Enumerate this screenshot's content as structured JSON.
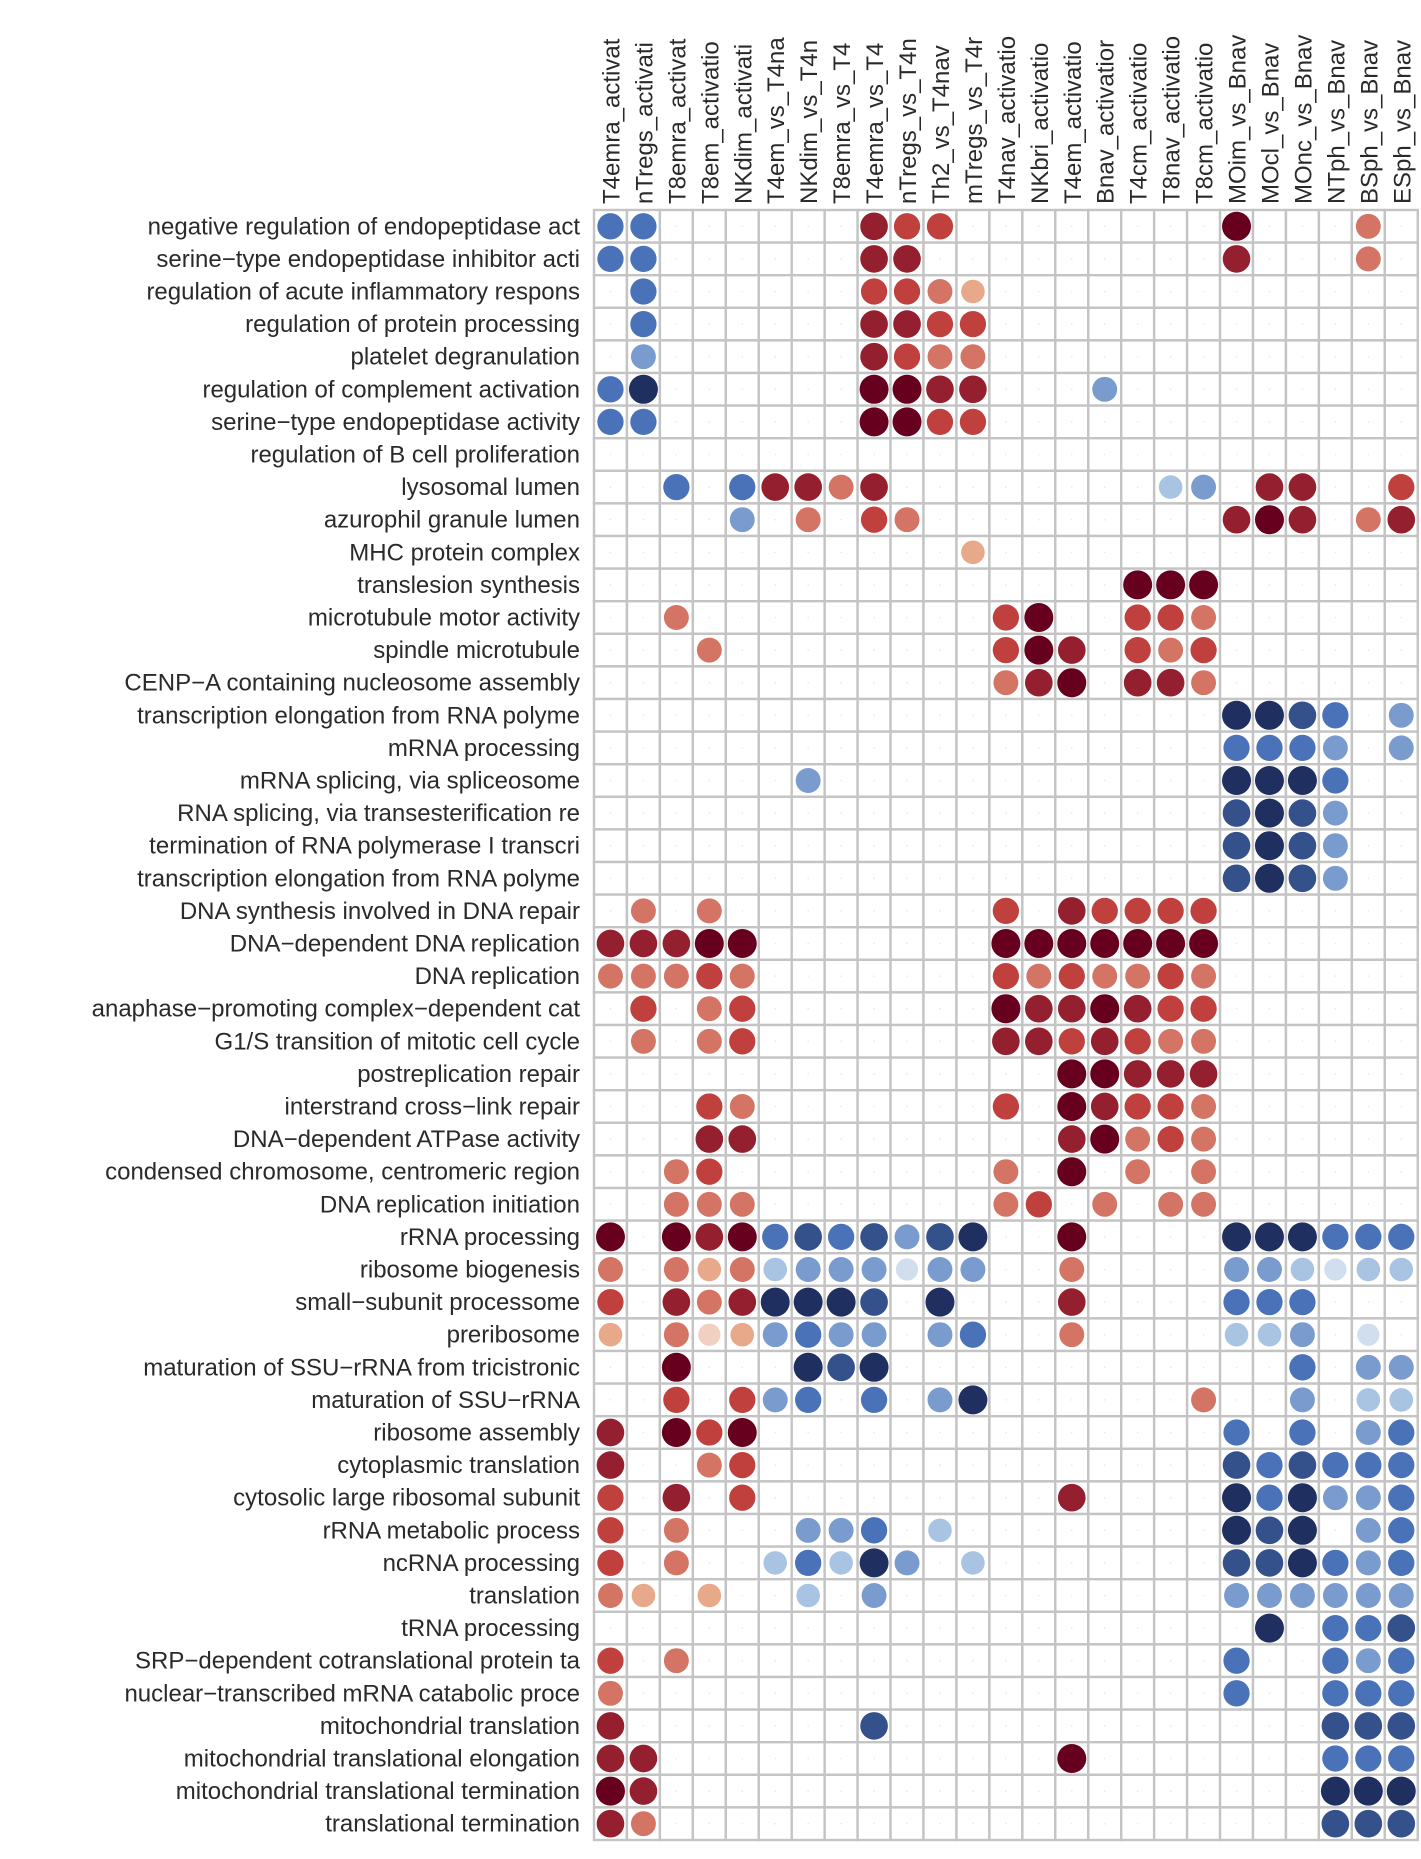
{
  "chart_data": {
    "type": "heatmap",
    "encoding": "dot color = signed enrichment (positive red, negative blue), dot size = magnitude; scale -3..3",
    "columns": [
      "T4emra_activat",
      "nTregs_activati",
      "T8emra_activat",
      "T8em_activatio",
      "NKdim_activati",
      "T4em_vs_T4na",
      "NKdim_vs_T4n",
      "T8emra_vs_T4",
      "T4emra_vs_T4",
      "nTregs_vs_T4n",
      "Th2_vs_T4nav",
      "mTregs_vs_T4r",
      "T4nav_activatio",
      "NKbri_activatio",
      "T4em_activatio",
      "Bnav_activatior",
      "T4cm_activatio",
      "T8nav_activatio",
      "T8cm_activatio",
      "MOim_vs_Bnav",
      "MOcl_vs_Bnav",
      "MOnc_vs_Bnav",
      "NTph_vs_Bnav",
      "BSph_vs_Bnav",
      "ESph_vs_Bnav"
    ],
    "rows": [
      "negative regulation of endopeptidase act",
      "serine−type endopeptidase inhibitor acti",
      "regulation of acute inflammatory respons",
      "regulation of protein processing",
      "platelet degranulation",
      "regulation of complement activation",
      "serine−type endopeptidase activity",
      "regulation of B cell proliferation",
      "lysosomal lumen",
      "azurophil granule lumen",
      "MHC protein complex",
      "translesion synthesis",
      "microtubule motor activity",
      "spindle microtubule",
      "CENP−A containing nucleosome assembly",
      "transcription elongation from RNA polyme",
      "mRNA processing",
      "mRNA splicing, via spliceosome",
      "RNA splicing, via transesterification re",
      "termination of RNA polymerase I transcri",
      "transcription elongation from RNA polyme",
      "DNA synthesis involved in DNA repair",
      "DNA−dependent DNA replication",
      "DNA replication",
      "anaphase−promoting complex−dependent cat",
      "G1/S transition of mitotic cell cycle",
      "postreplication repair",
      "interstrand cross−link repair",
      "DNA−dependent ATPase activity",
      "condensed chromosome, centromeric region",
      "DNA replication initiation",
      "rRNA processing",
      "ribosome biogenesis",
      "small−subunit processome",
      "preribosome",
      "maturation of SSU−rRNA from tricistronic",
      "maturation of SSU−rRNA",
      "ribosome assembly",
      "cytoplasmic translation",
      "cytosolic large ribosomal subunit",
      "rRNA metabolic process",
      "ncRNA processing",
      "translation",
      "tRNA processing",
      "SRP−dependent cotranslational protein ta",
      "nuclear−transcribed mRNA catabolic proce",
      "mitochondrial translation",
      "mitochondrial translational elongation",
      "mitochondrial translational termination",
      "translational termination"
    ],
    "values": [
      [
        -2,
        -2,
        0,
        0,
        0,
        0,
        0,
        0,
        2.5,
        2,
        2,
        0,
        0,
        0,
        0,
        0,
        0,
        0,
        0,
        3,
        0,
        0,
        0,
        1.5,
        0
      ],
      [
        -2,
        -2,
        0,
        0,
        0,
        0,
        0,
        0,
        2.5,
        2.5,
        0,
        0,
        0,
        0,
        0,
        0,
        0,
        0,
        0,
        2.5,
        0,
        0,
        0,
        1.5,
        0
      ],
      [
        0,
        -2,
        0,
        0,
        0,
        0,
        0,
        0,
        2,
        2,
        1.5,
        1,
        0,
        0,
        0,
        0,
        0,
        0,
        0,
        0,
        0,
        0,
        0,
        0,
        0
      ],
      [
        0,
        -2,
        0,
        0,
        0,
        0,
        0,
        0,
        2.5,
        2.5,
        2,
        2,
        0,
        0,
        0,
        0,
        0,
        0,
        0,
        0,
        0,
        0,
        0,
        0,
        0
      ],
      [
        0,
        -1.5,
        0,
        0,
        0,
        0,
        0,
        0,
        2.5,
        2,
        1.5,
        1.5,
        0,
        0,
        0,
        0,
        0,
        0,
        0,
        0,
        0,
        0,
        0,
        0,
        0
      ],
      [
        -2,
        -3,
        0,
        0,
        0,
        0,
        0,
        0,
        3,
        3,
        2.5,
        2.5,
        0,
        0,
        0,
        -1.5,
        0,
        0,
        0,
        0,
        0,
        0,
        0,
        0,
        0
      ],
      [
        -2,
        -2,
        0,
        0,
        0,
        0,
        0,
        0,
        3,
        3,
        2,
        2,
        0,
        0,
        0,
        0,
        0,
        0,
        0,
        0,
        0,
        0,
        0,
        0,
        0
      ],
      [
        0,
        0,
        0,
        0,
        0,
        0,
        0,
        0,
        0,
        0,
        0,
        0,
        0,
        0,
        0,
        0,
        0,
        0,
        0,
        0,
        0,
        0,
        0,
        0,
        0
      ],
      [
        0,
        0,
        -2,
        0,
        -2,
        2.5,
        2.5,
        1.5,
        2.5,
        0,
        0,
        0,
        0,
        0,
        0,
        0,
        0,
        -1,
        -1.5,
        0,
        2.5,
        2.5,
        0,
        0,
        2
      ],
      [
        0,
        0,
        0,
        0,
        -1.5,
        0,
        1.5,
        0,
        2,
        1.5,
        0,
        0,
        0,
        0,
        0,
        0,
        0,
        0,
        0,
        2.5,
        3,
        2.5,
        0,
        1.5,
        2.5
      ],
      [
        0,
        0,
        0,
        0,
        0,
        0,
        0,
        0,
        0,
        0,
        0,
        1,
        0,
        0,
        0,
        0,
        0,
        0,
        0,
        0,
        0,
        0,
        0,
        0,
        0
      ],
      [
        0,
        0,
        0,
        0,
        0,
        0,
        0,
        0,
        0,
        0,
        0,
        0,
        0,
        0,
        0,
        0,
        3,
        3,
        3,
        0,
        0,
        0,
        0,
        0,
        0
      ],
      [
        0,
        0,
        1.5,
        0,
        0,
        0,
        0,
        0,
        0,
        0,
        0,
        0,
        2,
        3,
        0,
        0,
        2,
        2,
        1.5,
        0,
        0,
        0,
        0,
        0,
        0
      ],
      [
        0,
        0,
        0,
        1.5,
        0,
        0,
        0,
        0,
        0,
        0,
        0,
        0,
        2,
        3,
        2.5,
        0,
        2,
        1.5,
        2,
        0,
        0,
        0,
        0,
        0,
        0
      ],
      [
        0,
        0,
        0,
        0,
        0,
        0,
        0,
        0,
        0,
        0,
        0,
        0,
        1.5,
        2.5,
        3,
        0,
        2.5,
        2.5,
        1.5,
        0,
        0,
        0,
        0,
        0,
        0
      ],
      [
        0,
        0,
        0,
        0,
        0,
        0,
        0,
        0,
        0,
        0,
        0,
        0,
        0,
        0,
        0,
        0,
        0,
        0,
        0,
        -3,
        -3,
        -2.5,
        -2,
        0,
        -1.5
      ],
      [
        0,
        0,
        0,
        0,
        0,
        0,
        0,
        0,
        0,
        0,
        0,
        0,
        0,
        0,
        0,
        0,
        0,
        0,
        0,
        -2,
        -2,
        -2,
        -1.5,
        0,
        -1.5
      ],
      [
        0,
        0,
        0,
        0,
        0,
        0,
        -1.5,
        0,
        0,
        0,
        0,
        0,
        0,
        0,
        0,
        0,
        0,
        0,
        0,
        -3,
        -3,
        -3,
        -2,
        0,
        0
      ],
      [
        0,
        0,
        0,
        0,
        0,
        0,
        0,
        0,
        0,
        0,
        0,
        0,
        0,
        0,
        0,
        0,
        0,
        0,
        0,
        -2.5,
        -3,
        -2.5,
        -1.5,
        0,
        0
      ],
      [
        0,
        0,
        0,
        0,
        0,
        0,
        0,
        0,
        0,
        0,
        0,
        0,
        0,
        0,
        0,
        0,
        0,
        0,
        0,
        -2.5,
        -3,
        -2.5,
        -1.5,
        0,
        0
      ],
      [
        0,
        0,
        0,
        0,
        0,
        0,
        0,
        0,
        0,
        0,
        0,
        0,
        0,
        0,
        0,
        0,
        0,
        0,
        0,
        -2.5,
        -3,
        -2.5,
        -1.5,
        0,
        0
      ],
      [
        0,
        1.5,
        0,
        1.5,
        0,
        0,
        0,
        0,
        0,
        0,
        0,
        0,
        2,
        0,
        2.5,
        2,
        2,
        2,
        2,
        0,
        0,
        0,
        0,
        0,
        0
      ],
      [
        2.5,
        2.5,
        2.5,
        3,
        3,
        0,
        0,
        0,
        0,
        0,
        0,
        0,
        3,
        3,
        3,
        3,
        3,
        3,
        3,
        0,
        0,
        0,
        0,
        0,
        0
      ],
      [
        1.5,
        1.5,
        1.5,
        2,
        1.5,
        0,
        0,
        0,
        0,
        0,
        0,
        0,
        2,
        1.5,
        2,
        1.5,
        1.5,
        2,
        1.5,
        0,
        0,
        0,
        0,
        0,
        0
      ],
      [
        0,
        2,
        0,
        1.5,
        2,
        0,
        0,
        0,
        0,
        0,
        0,
        0,
        3,
        2.5,
        2.5,
        3,
        2.5,
        2,
        2,
        0,
        0,
        0,
        0,
        0,
        0
      ],
      [
        0,
        1.5,
        0,
        1.5,
        2,
        0,
        0,
        0,
        0,
        0,
        0,
        0,
        2.5,
        2.5,
        2,
        2.5,
        2,
        1.5,
        1.5,
        0,
        0,
        0,
        0,
        0,
        0
      ],
      [
        0,
        0,
        0,
        0,
        0,
        0,
        0,
        0,
        0,
        0,
        0,
        0,
        0,
        0,
        3,
        3,
        2.5,
        2.5,
        2.5,
        0,
        0,
        0,
        0,
        0,
        0
      ],
      [
        0,
        0,
        0,
        2,
        1.5,
        0,
        0,
        0,
        0,
        0,
        0,
        0,
        2,
        0,
        3,
        2.5,
        2,
        2,
        1.5,
        0,
        0,
        0,
        0,
        0,
        0
      ],
      [
        0,
        0,
        0,
        2.5,
        2.5,
        0,
        0,
        0,
        0,
        0,
        0,
        0,
        0,
        0,
        2.5,
        3,
        1.5,
        2,
        1.5,
        0,
        0,
        0,
        0,
        0,
        0
      ],
      [
        0,
        0,
        1.5,
        2,
        0,
        0,
        0,
        0,
        0,
        0,
        0,
        0,
        1.5,
        0,
        3,
        0,
        1.5,
        0,
        1.5,
        0,
        0,
        0,
        0,
        0,
        0
      ],
      [
        0,
        0,
        1.5,
        1.5,
        1.5,
        0,
        0,
        0,
        0,
        0,
        0,
        0,
        1.5,
        2,
        0,
        1.5,
        0,
        1.5,
        1.5,
        0,
        0,
        0,
        0,
        0,
        0
      ],
      [
        3,
        0,
        3,
        2.5,
        3,
        -2,
        -2.5,
        -2,
        -2.5,
        -1.5,
        -2.5,
        -3,
        0,
        0,
        3,
        0,
        0,
        0,
        0,
        -3,
        -3,
        -3,
        -2,
        -2,
        -2
      ],
      [
        1.5,
        0,
        1.5,
        1,
        1.5,
        -1,
        -1.5,
        -1.5,
        -1.5,
        -0.5,
        -1.5,
        -1.5,
        0,
        0,
        1.5,
        0,
        0,
        0,
        0,
        -1.5,
        -1.5,
        -1,
        -0.5,
        -1,
        -1
      ],
      [
        2,
        0,
        2.5,
        1.5,
        2.5,
        -3,
        -3,
        -3,
        -2.5,
        0,
        -3,
        0,
        0,
        0,
        2.5,
        0,
        0,
        0,
        0,
        -2,
        -2,
        -2,
        0,
        0,
        0
      ],
      [
        1,
        0,
        1.5,
        0.5,
        1,
        -1.5,
        -2,
        -1.5,
        -1.5,
        0,
        -1.5,
        -2,
        0,
        0,
        1.5,
        0,
        0,
        0,
        0,
        -1,
        -1,
        -1.5,
        0,
        -0.5,
        0
      ],
      [
        0,
        0,
        3,
        0,
        0,
        0,
        -3,
        -2.5,
        -3,
        0,
        0,
        0,
        0,
        0,
        0,
        0,
        0,
        0,
        0,
        0,
        0,
        -2,
        0,
        -1.5,
        -1.5
      ],
      [
        0,
        0,
        2,
        0,
        2,
        -1.5,
        -2,
        0,
        -2,
        0,
        -1.5,
        -3,
        0,
        0,
        0,
        0,
        0,
        0,
        1.5,
        0,
        0,
        -1.5,
        0,
        -1,
        -1
      ],
      [
        2.5,
        0,
        3,
        2,
        3,
        0,
        0,
        0,
        0,
        0,
        0,
        0,
        0,
        0,
        0,
        0,
        0,
        0,
        0,
        -2,
        0,
        -2,
        0,
        -1.5,
        -2
      ],
      [
        2.5,
        0,
        0,
        1.5,
        2,
        0,
        0,
        0,
        0,
        0,
        0,
        0,
        0,
        0,
        0,
        0,
        0,
        0,
        0,
        -2.5,
        -2,
        -2.5,
        -2,
        -2,
        -2
      ],
      [
        2,
        0,
        2.5,
        0,
        2,
        0,
        0,
        0,
        0,
        0,
        0,
        0,
        0,
        0,
        2.5,
        0,
        0,
        0,
        0,
        -3,
        -2,
        -3,
        -1.5,
        -1.5,
        -2
      ],
      [
        2,
        0,
        1.5,
        0,
        0,
        0,
        -1.5,
        -1.5,
        -2,
        0,
        -1,
        0,
        0,
        0,
        0,
        0,
        0,
        0,
        0,
        -3,
        -2.5,
        -3,
        0,
        -1.5,
        -2
      ],
      [
        2,
        0,
        1.5,
        0,
        0,
        -1,
        -2,
        -1,
        -3,
        -1.5,
        0,
        -1,
        0,
        0,
        0,
        0,
        0,
        0,
        0,
        -2.5,
        -2.5,
        -3,
        -2,
        -1.5,
        -2
      ],
      [
        1.5,
        1,
        0,
        1,
        0,
        0,
        -1,
        0,
        -1.5,
        0,
        0,
        0,
        0,
        0,
        0,
        0,
        0,
        0,
        0,
        -1.5,
        -1.5,
        -1.5,
        -1.5,
        -1.5,
        -1.5
      ],
      [
        0,
        0,
        0,
        0,
        0,
        0,
        0,
        0,
        0,
        0,
        0,
        0,
        0,
        0,
        0,
        0,
        0,
        0,
        0,
        0,
        -3,
        0,
        -2,
        -2,
        -2.5
      ],
      [
        2,
        0,
        1.5,
        0,
        0,
        0,
        0,
        0,
        0,
        0,
        0,
        0,
        0,
        0,
        0,
        0,
        0,
        0,
        0,
        -2,
        0,
        0,
        -2,
        -1.5,
        -2
      ],
      [
        1.5,
        0,
        0,
        0,
        0,
        0,
        0,
        0,
        0,
        0,
        0,
        0,
        0,
        0,
        0,
        0,
        0,
        0,
        0,
        -2,
        0,
        0,
        -2,
        -2,
        -2
      ],
      [
        2.5,
        0,
        0,
        0,
        0,
        0,
        0,
        0,
        -2.5,
        0,
        0,
        0,
        0,
        0,
        0,
        0,
        0,
        0,
        0,
        0,
        0,
        0,
        -2.5,
        -2.5,
        -2.5
      ],
      [
        2.5,
        2.5,
        0,
        0,
        0,
        0,
        0,
        0,
        0,
        0,
        0,
        0,
        0,
        0,
        3,
        0,
        0,
        0,
        0,
        0,
        0,
        0,
        -2,
        -2,
        -2
      ],
      [
        3,
        2.5,
        0,
        0,
        0,
        0,
        0,
        0,
        0,
        0,
        0,
        0,
        0,
        0,
        0,
        0,
        0,
        0,
        0,
        0,
        0,
        0,
        -3,
        -3,
        -3
      ],
      [
        2.5,
        1.5,
        0,
        0,
        0,
        0,
        0,
        0,
        0,
        0,
        0,
        0,
        0,
        0,
        0,
        0,
        0,
        0,
        0,
        0,
        0,
        0,
        -2.5,
        -2.5,
        -2.5
      ]
    ],
    "vmin": -3,
    "vmax": 3,
    "colors": {
      "neg_strong": "#1f2f60",
      "neg_mid": "#4a72b8",
      "neg_light": "#a9c4e2",
      "neutral": "#f7f7f7",
      "pos_light": "#e8a88a",
      "pos_mid": "#c0403e",
      "pos_strong": "#67001f"
    },
    "grid": true
  }
}
